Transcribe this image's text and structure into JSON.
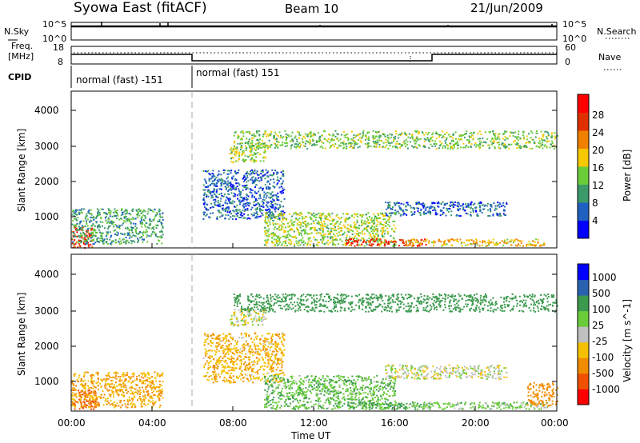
{
  "header": {
    "station": "Syowa East (fitACF)",
    "beam": "Beam 10",
    "date": "21/Jun/2009"
  },
  "nsky_panel": {
    "left_label": "N.Sky",
    "right_label": "N.Search",
    "tick_top": "10^5",
    "tick_bottom": "10^0"
  },
  "freq_panel": {
    "left_label_line1": "Freq.",
    "left_label_line2": "[MHz]",
    "right_label": "Nave",
    "left_tick_top": "18",
    "left_tick_bottom": "8",
    "right_tick_top": "60",
    "right_tick_bottom": "0"
  },
  "cpid_panel": {
    "label": "CPID",
    "segments": [
      "normal (fast) -151",
      "normal (fast) 151"
    ]
  },
  "x_axis": {
    "label": "Time UT",
    "ticks": [
      "00:00",
      "04:00",
      "08:00",
      "12:00",
      "16:00",
      "20:00",
      "00:00"
    ]
  },
  "colors": {
    "power_scale": [
      "#0000ff",
      "#2060c0",
      "#3c9a6a",
      "#6acc3a",
      "#f5c800",
      "#f08000",
      "#e03000",
      "#ff0000"
    ],
    "velocity_scale": [
      "#ff0000",
      "#f05000",
      "#f08c00",
      "#f5c000",
      "#c0c0c0",
      "#6acc3a",
      "#3c9a4e",
      "#2a60b0",
      "#0000ff"
    ]
  },
  "chart_data": [
    {
      "type": "heatmap",
      "title": "Power",
      "xlabel": "Time UT",
      "ylabel": "Slant Range [km]",
      "xlim": [
        "00:00",
        "00:00"
      ],
      "ylim": [
        180,
        4600
      ],
      "y_ticks": [
        "1000",
        "2000",
        "3000",
        "4000"
      ],
      "colorbar": {
        "label": "Power [dB]",
        "ticks": [
          "4",
          "8",
          "12",
          "16",
          "20",
          "24",
          "28"
        ],
        "range": [
          0,
          30
        ]
      },
      "echo_regions": [
        {
          "time_start": 0.0,
          "time_end": 1.0,
          "range_start": 200,
          "range_end": 800,
          "value": 26
        },
        {
          "time_start": 0.0,
          "time_end": 4.5,
          "range_start": 300,
          "range_end": 1300,
          "value": 10
        },
        {
          "time_start": 7.8,
          "time_end": 9.6,
          "range_start": 2600,
          "range_end": 3100,
          "value": 14
        },
        {
          "time_start": 6.5,
          "time_end": 10.5,
          "range_start": 1000,
          "range_end": 2400,
          "value": 6
        },
        {
          "time_start": 9.5,
          "time_end": 16.0,
          "range_start": 250,
          "range_end": 1200,
          "value": 14
        },
        {
          "time_start": 13.5,
          "time_end": 17.5,
          "range_start": 250,
          "range_end": 450,
          "value": 25
        },
        {
          "time_start": 15.5,
          "time_end": 21.5,
          "range_start": 1100,
          "range_end": 1500,
          "value": 6
        },
        {
          "time_start": 16.5,
          "time_end": 23.5,
          "range_start": 250,
          "range_end": 450,
          "value": 18
        },
        {
          "time_start": 8.0,
          "time_end": 24.0,
          "range_start": 3000,
          "range_end": 3500,
          "value": 13
        }
      ]
    },
    {
      "type": "heatmap",
      "title": "Velocity",
      "xlabel": "Time UT",
      "ylabel": "Slant Range [km]",
      "xlim": [
        "00:00",
        "00:00"
      ],
      "ylim": [
        180,
        4600
      ],
      "y_ticks": [
        "1000",
        "2000",
        "3000",
        "4000"
      ],
      "colorbar": {
        "label": "Velocity [m s^-1]",
        "ticks": [
          "-1000",
          "-500",
          "-100",
          "-25",
          "25",
          "100",
          "500",
          "1000"
        ]
      },
      "echo_regions": [
        {
          "time_start": 0.0,
          "time_end": 1.2,
          "range_start": 250,
          "range_end": 800,
          "value": -600
        },
        {
          "time_start": 0.0,
          "time_end": 4.5,
          "range_start": 300,
          "range_end": 1300,
          "value": -100
        },
        {
          "time_start": 7.8,
          "time_end": 9.6,
          "range_start": 2600,
          "range_end": 3100,
          "value": 0
        },
        {
          "time_start": 6.5,
          "time_end": 10.5,
          "range_start": 1000,
          "range_end": 2400,
          "value": -80
        },
        {
          "time_start": 9.5,
          "time_end": 16.0,
          "range_start": 250,
          "range_end": 1200,
          "value": 80
        },
        {
          "time_start": 13.5,
          "time_end": 17.5,
          "range_start": 250,
          "range_end": 450,
          "value": 120
        },
        {
          "time_start": 15.5,
          "time_end": 21.5,
          "range_start": 1100,
          "range_end": 1500,
          "value": 0
        },
        {
          "time_start": 16.5,
          "time_end": 23.5,
          "range_start": 250,
          "range_end": 450,
          "value": 60
        },
        {
          "time_start": 22.5,
          "time_end": 24.0,
          "range_start": 350,
          "range_end": 1000,
          "value": -300
        },
        {
          "time_start": 8.0,
          "time_end": 24.0,
          "range_start": 3000,
          "range_end": 3500,
          "value": 300
        }
      ]
    }
  ]
}
